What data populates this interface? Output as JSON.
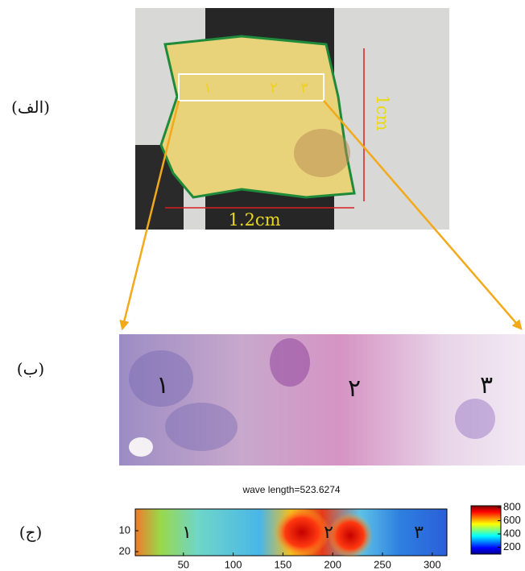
{
  "panels": [
    {
      "label": "(الف)",
      "scale_vertical": "1cm",
      "scale_horizontal": "1.2cm",
      "regions": [
        "١",
        "٢",
        "٣"
      ]
    },
    {
      "label": "(ب)",
      "regions": [
        "١",
        "٢",
        "٣"
      ]
    },
    {
      "label": "(ج)",
      "title": "wave length=523.6274",
      "regions": [
        "١",
        "٢",
        "٣"
      ],
      "x_ticks": [
        50,
        100,
        150,
        200,
        250,
        300
      ],
      "y_ticks": [
        10,
        20
      ],
      "colorbar_ticks": [
        200,
        400,
        600,
        800
      ]
    }
  ]
}
